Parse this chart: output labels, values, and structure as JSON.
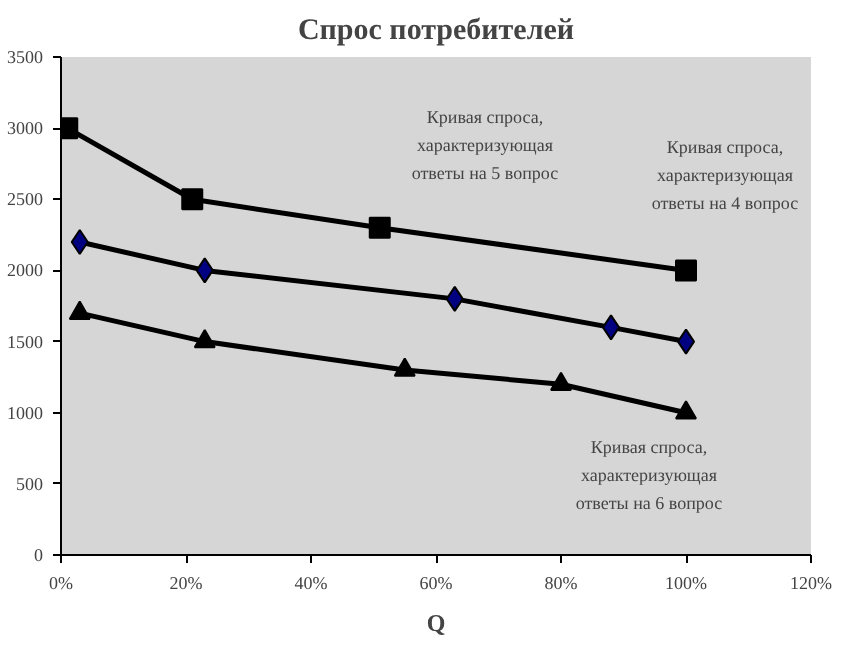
{
  "chart_data": {
    "type": "line",
    "title": "Спрос потребителей",
    "xlabel": "Q",
    "series": [
      {
        "color": "#000000",
        "marker": "square",
        "x": [
          1,
          21,
          51,
          100
        ],
        "values": [
          3000,
          2500,
          2300,
          2000
        ]
      },
      {
        "color": "#000080",
        "marker": "diamond",
        "x": [
          3,
          23,
          63,
          88,
          100
        ],
        "values": [
          2200,
          2000,
          1800,
          1600,
          1500
        ]
      },
      {
        "color": "#000000",
        "marker": "triangle",
        "x": [
          3,
          23,
          55,
          80,
          100
        ],
        "values": [
          1700,
          1500,
          1300,
          1200,
          1000
        ]
      }
    ],
    "xlim": [
      0,
      120
    ],
    "xticks": [
      {
        "value": 0,
        "label": "0%"
      },
      {
        "value": 20,
        "label": "20%"
      },
      {
        "value": 40,
        "label": "40%"
      },
      {
        "value": 60,
        "label": "60%"
      },
      {
        "value": 80,
        "label": "80%"
      },
      {
        "value": 100,
        "label": "100%"
      },
      {
        "value": 120,
        "label": "120%"
      }
    ],
    "ylim": [
      0,
      3500
    ],
    "yticks": [
      0,
      500,
      1000,
      1500,
      2000,
      2500,
      3000,
      3500
    ],
    "grid": false,
    "annotations": [
      "Кривая спроса,\nхарактеризующая\nответы на 5 вопрос",
      "Кривая спроса,\nхарактеризующая\nответы на 4 вопрос",
      "Кривая спроса,\nхарактеризующая\nответы на 6 вопрос"
    ]
  }
}
